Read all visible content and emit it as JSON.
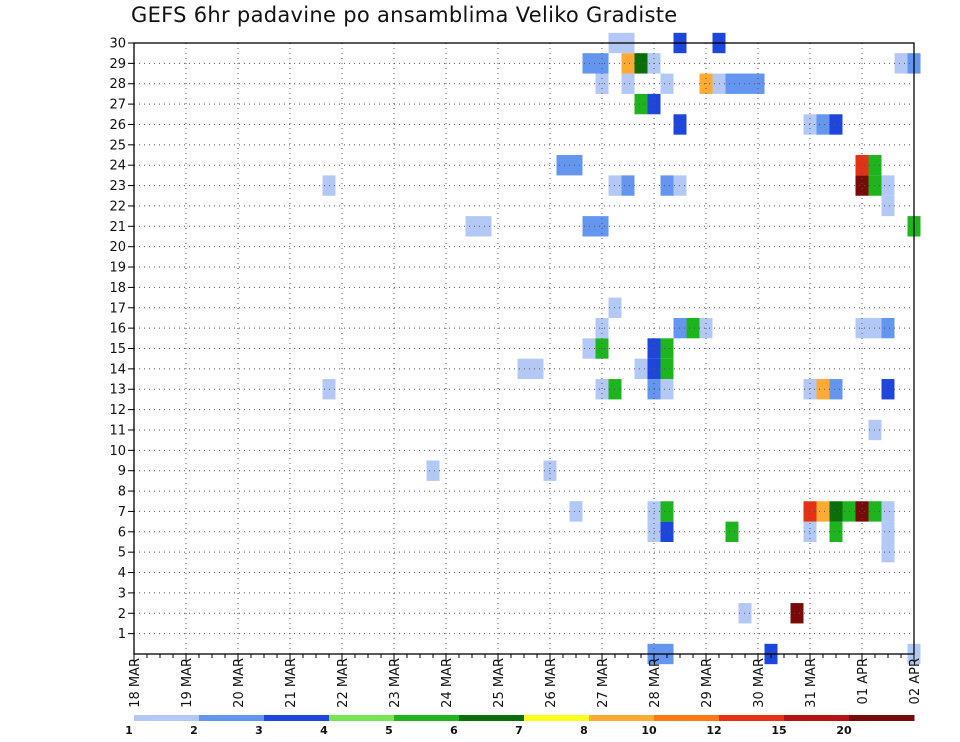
{
  "chart_data": {
    "type": "heatmap",
    "title": "GEFS 6hr padavine po ansamblima Veliko Gradiste",
    "xlabel": "",
    "ylabel": "",
    "x_tick_labels": [
      "18 MAR",
      "19 MAR",
      "20 MAR",
      "21 MAR",
      "22 MAR",
      "23 MAR",
      "24 MAR",
      "25 MAR",
      "26 MAR",
      "27 MAR",
      "28 MAR",
      "29 MAR",
      "30 MAR",
      "31 MAR",
      "01 APR",
      "02 APR"
    ],
    "x_unit": "6-hour steps from 18 MAR 00Z",
    "x_range": [
      0,
      60
    ],
    "y_tick_labels": [
      "1",
      "2",
      "3",
      "4",
      "5",
      "6",
      "7",
      "8",
      "9",
      "10",
      "11",
      "12",
      "13",
      "14",
      "15",
      "16",
      "17",
      "18",
      "19",
      "20",
      "21",
      "22",
      "23",
      "24",
      "25",
      "26",
      "27",
      "28",
      "29",
      "30"
    ],
    "y_range": [
      0,
      30
    ],
    "grid": true,
    "legend": {
      "placement": "bottom",
      "breaks": [
        "1",
        "2",
        "3",
        "4",
        "5",
        "6",
        "7",
        "8",
        "10",
        "12",
        "15",
        "20"
      ],
      "colors": [
        "#b4c8f5",
        "#6496f0",
        "#1e46dc",
        "#78e650",
        "#1eb41e",
        "#0a6e0a",
        "#ffff1e",
        "#ffaa32",
        "#ff7814",
        "#e63214",
        "#b41414",
        "#780a0a"
      ]
    },
    "cells": [
      {
        "member": 0,
        "col": 40,
        "level": 2
      },
      {
        "member": 0,
        "col": 41,
        "level": 2
      },
      {
        "member": 0,
        "col": 49,
        "level": 3
      },
      {
        "member": 0,
        "col": 60,
        "level": 1
      },
      {
        "member": 2,
        "col": 47,
        "level": 1
      },
      {
        "member": 2,
        "col": 51,
        "level": 12
      },
      {
        "member": 5,
        "col": 58,
        "level": 1
      },
      {
        "member": 6,
        "col": 40,
        "level": 1
      },
      {
        "member": 6,
        "col": 41,
        "level": 3
      },
      {
        "member": 6,
        "col": 46,
        "level": 5
      },
      {
        "member": 6,
        "col": 52,
        "level": 1
      },
      {
        "member": 6,
        "col": 54,
        "level": 5
      },
      {
        "member": 6,
        "col": 58,
        "level": 1
      },
      {
        "member": 7,
        "col": 34,
        "level": 1
      },
      {
        "member": 7,
        "col": 40,
        "level": 1
      },
      {
        "member": 7,
        "col": 41,
        "level": 5
      },
      {
        "member": 7,
        "col": 52,
        "level": 10
      },
      {
        "member": 7,
        "col": 53,
        "level": 8
      },
      {
        "member": 7,
        "col": 54,
        "level": 6
      },
      {
        "member": 7,
        "col": 55,
        "level": 5
      },
      {
        "member": 7,
        "col": 56,
        "level": 15
      },
      {
        "member": 7,
        "col": 57,
        "level": 5
      },
      {
        "member": 7,
        "col": 58,
        "level": 1
      },
      {
        "member": 9,
        "col": 23,
        "level": 1
      },
      {
        "member": 9,
        "col": 32,
        "level": 1
      },
      {
        "member": 11,
        "col": 57,
        "level": 1
      },
      {
        "member": 13,
        "col": 15,
        "level": 1
      },
      {
        "member": 13,
        "col": 36,
        "level": 1
      },
      {
        "member": 13,
        "col": 37,
        "level": 5
      },
      {
        "member": 13,
        "col": 40,
        "level": 2
      },
      {
        "member": 13,
        "col": 41,
        "level": 1
      },
      {
        "member": 13,
        "col": 52,
        "level": 1
      },
      {
        "member": 13,
        "col": 53,
        "level": 8
      },
      {
        "member": 13,
        "col": 54,
        "level": 2
      },
      {
        "member": 13,
        "col": 58,
        "level": 3
      },
      {
        "member": 14,
        "col": 30,
        "level": 1
      },
      {
        "member": 14,
        "col": 31,
        "level": 1
      },
      {
        "member": 14,
        "col": 39,
        "level": 1
      },
      {
        "member": 14,
        "col": 40,
        "level": 3
      },
      {
        "member": 14,
        "col": 41,
        "level": 5
      },
      {
        "member": 15,
        "col": 35,
        "level": 1
      },
      {
        "member": 15,
        "col": 36,
        "level": 5
      },
      {
        "member": 15,
        "col": 40,
        "level": 3
      },
      {
        "member": 15,
        "col": 41,
        "level": 5
      },
      {
        "member": 16,
        "col": 36,
        "level": 1
      },
      {
        "member": 16,
        "col": 42,
        "level": 2
      },
      {
        "member": 16,
        "col": 43,
        "level": 5
      },
      {
        "member": 16,
        "col": 44,
        "level": 1
      },
      {
        "member": 16,
        "col": 56,
        "level": 1
      },
      {
        "member": 16,
        "col": 57,
        "level": 1
      },
      {
        "member": 16,
        "col": 58,
        "level": 2
      },
      {
        "member": 17,
        "col": 37,
        "level": 1
      },
      {
        "member": 21,
        "col": 26,
        "level": 1
      },
      {
        "member": 21,
        "col": 27,
        "level": 1
      },
      {
        "member": 21,
        "col": 35,
        "level": 2
      },
      {
        "member": 21,
        "col": 36,
        "level": 2
      },
      {
        "member": 21,
        "col": 60,
        "level": 5
      },
      {
        "member": 22,
        "col": 58,
        "level": 1
      },
      {
        "member": 23,
        "col": 15,
        "level": 1
      },
      {
        "member": 23,
        "col": 37,
        "level": 1
      },
      {
        "member": 23,
        "col": 38,
        "level": 2
      },
      {
        "member": 23,
        "col": 41,
        "level": 2
      },
      {
        "member": 23,
        "col": 42,
        "level": 1
      },
      {
        "member": 23,
        "col": 56,
        "level": 15
      },
      {
        "member": 23,
        "col": 57,
        "level": 5
      },
      {
        "member": 23,
        "col": 58,
        "level": 1
      },
      {
        "member": 24,
        "col": 33,
        "level": 2
      },
      {
        "member": 24,
        "col": 34,
        "level": 2
      },
      {
        "member": 24,
        "col": 56,
        "level": 10
      },
      {
        "member": 24,
        "col": 57,
        "level": 5
      },
      {
        "member": 26,
        "col": 42,
        "level": 3
      },
      {
        "member": 26,
        "col": 52,
        "level": 1
      },
      {
        "member": 26,
        "col": 53,
        "level": 2
      },
      {
        "member": 26,
        "col": 54,
        "level": 3
      },
      {
        "member": 27,
        "col": 39,
        "level": 5
      },
      {
        "member": 27,
        "col": 40,
        "level": 3
      },
      {
        "member": 28,
        "col": 36,
        "level": 1
      },
      {
        "member": 28,
        "col": 38,
        "level": 1
      },
      {
        "member": 28,
        "col": 41,
        "level": 1
      },
      {
        "member": 28,
        "col": 44,
        "level": 8
      },
      {
        "member": 28,
        "col": 45,
        "level": 1
      },
      {
        "member": 28,
        "col": 46,
        "level": 2
      },
      {
        "member": 28,
        "col": 47,
        "level": 2
      },
      {
        "member": 28,
        "col": 48,
        "level": 2
      },
      {
        "member": 29,
        "col": 35,
        "level": 2
      },
      {
        "member": 29,
        "col": 36,
        "level": 2
      },
      {
        "member": 29,
        "col": 38,
        "level": 8
      },
      {
        "member": 29,
        "col": 39,
        "level": 6
      },
      {
        "member": 29,
        "col": 40,
        "level": 1
      },
      {
        "member": 29,
        "col": 59,
        "level": 1
      },
      {
        "member": 29,
        "col": 60,
        "level": 2
      },
      {
        "member": 30,
        "col": 37,
        "level": 1
      },
      {
        "member": 30,
        "col": 38,
        "level": 1
      },
      {
        "member": 30,
        "col": 42,
        "level": 3
      },
      {
        "member": 30,
        "col": 45,
        "level": 3
      }
    ]
  }
}
